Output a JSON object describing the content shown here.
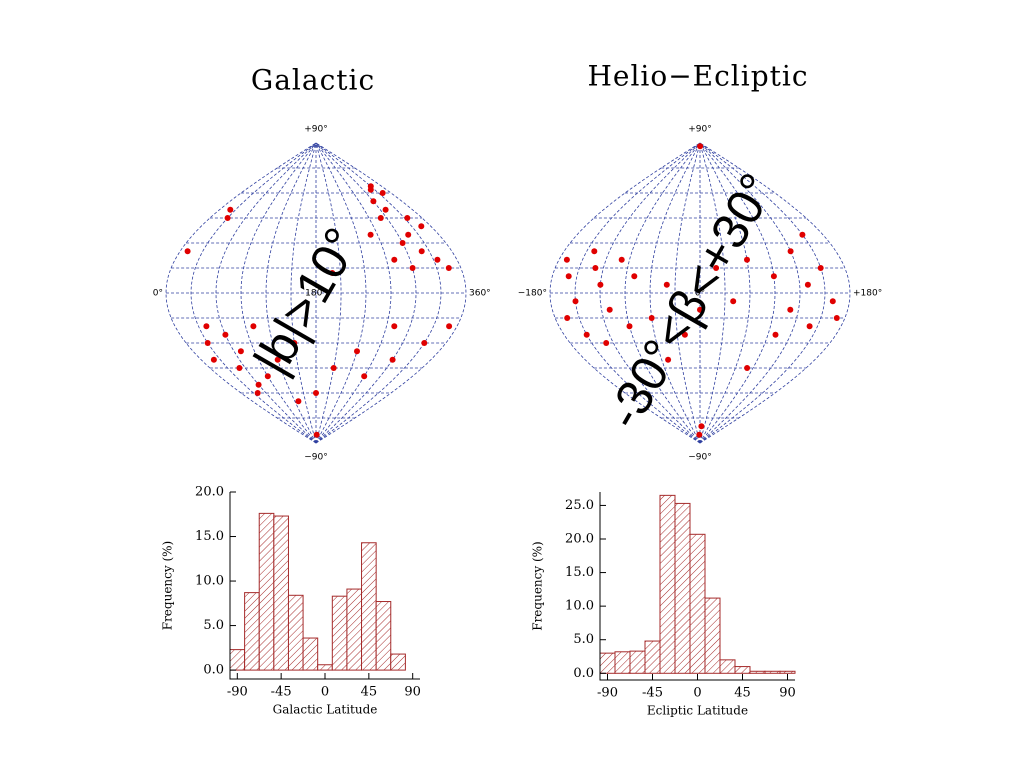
{
  "chart_data": [
    {
      "type": "skymap",
      "title": "Galactic",
      "annotation": "|b|>10°",
      "color": "#e00000",
      "xlim": [
        0,
        360
      ],
      "ylim": [
        -90,
        90
      ],
      "xticks": [
        {
          "value": 0,
          "label": "0°"
        },
        {
          "value": 180,
          "label": "180°"
        },
        {
          "value": 360,
          "label": "360°"
        }
      ],
      "yticks": [
        {
          "value": 90,
          "label": "+90°"
        },
        {
          "value": -90,
          "label": "−90°"
        }
      ],
      "x": [
        330,
        320,
        340,
        300,
        310,
        290,
        335,
        345,
        315,
        300,
        320,
        335,
        345,
        300,
        280,
        260,
        30,
        20,
        10,
        200,
        40,
        30,
        20,
        50,
        60,
        40,
        70,
        90,
        120,
        150,
        180,
        210,
        240,
        270,
        300,
        330,
        350,
        280,
        190,
        100,
        60,
        130
      ],
      "y": [
        64,
        62,
        60,
        55,
        50,
        45,
        45,
        40,
        35,
        30,
        25,
        20,
        15,
        15,
        20,
        35,
        45,
        50,
        25,
        12,
        -20,
        -30,
        -40,
        -45,
        -55,
        -60,
        -35,
        -50,
        -40,
        -30,
        -60,
        -45,
        -35,
        -50,
        -40,
        -30,
        -20,
        -20,
        -85,
        -20,
        -25,
        -65
      ]
    },
    {
      "type": "skymap",
      "title": "Helio−Ecliptic",
      "annotation": "-30°<β<+30°",
      "color": "#e00000",
      "xlim": [
        -180,
        180
      ],
      "ylim": [
        -90,
        90
      ],
      "xticks": [
        {
          "value": -180,
          "label": "−180°"
        },
        {
          "value": 0,
          "label": "0°"
        },
        {
          "value": 180,
          "label": "+180°"
        }
      ],
      "yticks": [
        {
          "value": 90,
          "label": "+90°"
        },
        {
          "value": -90,
          "label": "−90°"
        }
      ],
      "x": [
        -170,
        -160,
        -150,
        -165,
        -140,
        -130,
        -120,
        -110,
        -150,
        -100,
        -90,
        -80,
        -60,
        -40,
        -20,
        0,
        20,
        40,
        60,
        90,
        110,
        130,
        150,
        160,
        170,
        140,
        120,
        100,
        -130,
        150,
        -10,
        10,
        5,
        -50,
        80
      ],
      "y": [
        20,
        10,
        -5,
        -15,
        25,
        15,
        5,
        -10,
        -25,
        20,
        -20,
        10,
        -15,
        5,
        -25,
        -10,
        15,
        -5,
        20,
        10,
        -10,
        5,
        15,
        -5,
        -15,
        -20,
        25,
        -25,
        -30,
        35,
        -85,
        -80,
        88,
        -40,
        -45
      ]
    },
    {
      "type": "histogram",
      "xlabel": "Galactic Latitude",
      "ylabel": "Frequency (%)",
      "color": "#a52a2a",
      "bins": [
        -97.5,
        -82.5,
        -67.5,
        -52.5,
        -37.5,
        -22.5,
        -7.5,
        7.5,
        22.5,
        37.5,
        52.5,
        67.5,
        82.5
      ],
      "values": [
        2.3,
        8.7,
        17.6,
        17.3,
        8.4,
        3.6,
        0.6,
        8.3,
        9.1,
        14.3,
        7.7,
        1.8
      ],
      "xlim": [
        -97.5,
        97.5
      ],
      "ylim": [
        -1,
        20
      ],
      "xticks": [
        -90,
        -45,
        0,
        45,
        90
      ],
      "yticks": [
        {
          "value": 0,
          "label": "0.0"
        },
        {
          "value": 5,
          "label": "5.0"
        },
        {
          "value": 10,
          "label": "10.0"
        },
        {
          "value": 15,
          "label": "15.0"
        },
        {
          "value": 20,
          "label": "20.0"
        }
      ]
    },
    {
      "type": "histogram",
      "xlabel": "Ecliptic Latitude",
      "ylabel": "Frequency (%)",
      "color": "#a52a2a",
      "bins": [
        -97.5,
        -82.5,
        -67.5,
        -52.5,
        -37.5,
        -22.5,
        -7.5,
        7.5,
        22.5,
        37.5,
        52.5,
        67.5,
        82.5,
        97.5
      ],
      "values": [
        3.0,
        3.2,
        3.3,
        4.8,
        26.5,
        25.3,
        20.7,
        11.2,
        2.0,
        1.0,
        0.3,
        0.3,
        0.3
      ],
      "xlim": [
        -97.5,
        97.5
      ],
      "ylim": [
        -1,
        27
      ],
      "xticks": [
        -90,
        -45,
        0,
        45,
        90
      ],
      "yticks": [
        {
          "value": 0,
          "label": "0.0"
        },
        {
          "value": 5,
          "label": "5.0"
        },
        {
          "value": 10,
          "label": "10.0"
        },
        {
          "value": 15,
          "label": "15.0"
        },
        {
          "value": 20,
          "label": "20.0"
        },
        {
          "value": 25,
          "label": "25.0"
        }
      ]
    }
  ]
}
